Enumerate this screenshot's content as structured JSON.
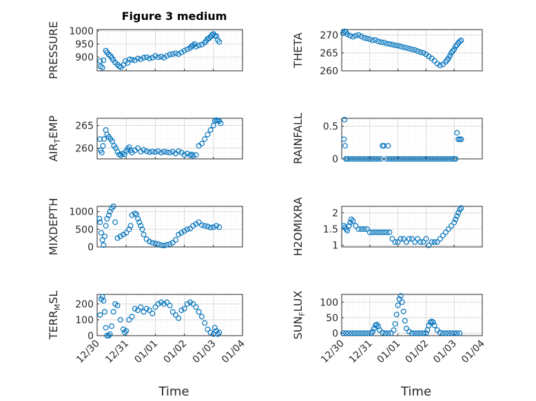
{
  "figure_title": "Figure 3 medium",
  "colors": {
    "marker": "#0072BD",
    "axis": "#262626",
    "grid": "#d9d9d9",
    "minorgrid": "#e8e8e8"
  },
  "x_axis": {
    "label": "Time",
    "ticks": [
      0,
      1,
      2,
      3,
      4,
      5
    ],
    "tick_labels": [
      "12/30",
      "12/31",
      "01/01",
      "01/02",
      "01/03",
      "01/04"
    ],
    "range": [
      0,
      5
    ]
  },
  "y_labels": {
    "pressure": "PRESSURE",
    "theta": "THETA",
    "air_temp": {
      "base": "AIR",
      "sub": "T",
      "rest": "EMP"
    },
    "rainfall": "RAINFALL",
    "mixdepth": "MIXDEPTH",
    "h2omixra": "H2OMIXRA",
    "terr_msl": {
      "base": "TERR",
      "sub": "M",
      "rest": "SL"
    },
    "sun_flux": {
      "base": "SUN",
      "sub": "F",
      "rest": "LUX"
    }
  },
  "chart_data": [
    {
      "id": "pressure",
      "type": "scatter",
      "title": "Figure 3 medium",
      "ylabel": "PRESSURE",
      "xlabel": "",
      "ylim": [
        848,
        1005
      ],
      "yticks": [
        900,
        950,
        1000
      ],
      "x": [
        0.1,
        0.12,
        0.18,
        0.22,
        0.3,
        0.34,
        0.4,
        0.46,
        0.5,
        0.55,
        0.62,
        0.7,
        0.76,
        0.82,
        0.9,
        0.97,
        1.05,
        1.12,
        1.2,
        1.3,
        1.4,
        1.5,
        1.6,
        1.7,
        1.8,
        1.9,
        2.0,
        2.1,
        2.2,
        2.3,
        2.4,
        2.5,
        2.6,
        2.7,
        2.8,
        2.9,
        3.0,
        3.1,
        3.2,
        3.25,
        3.3,
        3.35,
        3.4,
        3.5,
        3.6,
        3.7,
        3.75,
        3.8,
        3.85,
        3.9,
        3.95,
        4.0,
        4.05,
        4.1,
        4.15,
        4.2
      ],
      "values": [
        885,
        865,
        860,
        888,
        925,
        918,
        910,
        905,
        898,
        890,
        880,
        872,
        865,
        862,
        870,
        885,
        878,
        892,
        890,
        888,
        895,
        892,
        898,
        900,
        895,
        898,
        905,
        900,
        902,
        898,
        905,
        910,
        912,
        915,
        912,
        918,
        925,
        930,
        935,
        942,
        945,
        950,
        940,
        945,
        948,
        955,
        962,
        970,
        972,
        978,
        985,
        988,
        982,
        980,
        965,
        958
      ]
    },
    {
      "id": "theta",
      "type": "scatter",
      "ylabel": "THETA",
      "xlabel": "",
      "ylim": [
        260,
        271.5
      ],
      "yticks": [
        260,
        265,
        270
      ],
      "x": [
        0.05,
        0.1,
        0.15,
        0.2,
        0.3,
        0.4,
        0.5,
        0.6,
        0.7,
        0.8,
        0.9,
        1.0,
        1.1,
        1.2,
        1.3,
        1.4,
        1.5,
        1.6,
        1.7,
        1.8,
        1.9,
        2.0,
        2.1,
        2.2,
        2.3,
        2.4,
        2.5,
        2.6,
        2.7,
        2.8,
        2.9,
        3.0,
        3.1,
        3.2,
        3.3,
        3.4,
        3.5,
        3.6,
        3.7,
        3.75,
        3.8,
        3.85,
        3.9,
        3.95,
        4.0,
        4.05,
        4.1,
        4.15,
        4.2,
        4.25
      ],
      "values": [
        270.5,
        271,
        270.8,
        270.2,
        269.8,
        269.5,
        269.8,
        270,
        269.6,
        269.2,
        269,
        268.8,
        268.5,
        268.6,
        268.2,
        268,
        267.9,
        267.6,
        267.5,
        267.3,
        267.1,
        267,
        266.8,
        266.6,
        266.4,
        266.2,
        266,
        265.8,
        265.5,
        265.2,
        265,
        264.6,
        264,
        263.5,
        262.8,
        262,
        261.5,
        261.8,
        262.5,
        263,
        263.5,
        264.2,
        265,
        265.5,
        266,
        266.8,
        267.2,
        267.8,
        268.2,
        268.5
      ]
    },
    {
      "id": "air_temp",
      "type": "scatter",
      "ylabel": "AIR_TEMP",
      "xlabel": "",
      "ylim": [
        257.6,
        266.6
      ],
      "yticks": [
        260,
        265
      ],
      "x": [
        0.1,
        0.12,
        0.16,
        0.2,
        0.24,
        0.3,
        0.34,
        0.4,
        0.46,
        0.52,
        0.58,
        0.64,
        0.7,
        0.76,
        0.82,
        0.88,
        0.94,
        1.0,
        1.05,
        1.1,
        1.15,
        1.2,
        1.3,
        1.4,
        1.5,
        1.6,
        1.7,
        1.8,
        1.9,
        2.0,
        2.1,
        2.2,
        2.3,
        2.4,
        2.5,
        2.6,
        2.7,
        2.8,
        2.9,
        3.0,
        3.1,
        3.2,
        3.25,
        3.3,
        3.4,
        3.5,
        3.6,
        3.7,
        3.8,
        3.9,
        4.0,
        4.05,
        4.1,
        4.15,
        4.2,
        4.25
      ],
      "values": [
        262,
        259.5,
        259,
        260.5,
        262,
        264,
        263,
        262.5,
        262,
        261.5,
        260.5,
        260,
        259.2,
        258.6,
        258.4,
        258.8,
        258.6,
        259.3,
        259.8,
        260.2,
        259.5,
        259,
        259.5,
        260,
        259.2,
        259.6,
        259.3,
        259.1,
        259.2,
        259.1,
        259.3,
        259,
        259.2,
        259.1,
        259,
        259.2,
        258.8,
        259.3,
        259,
        258.5,
        258.8,
        258.4,
        258.6,
        258.3,
        258.5,
        260.5,
        261,
        262,
        263,
        264,
        265,
        266,
        266.2,
        266.1,
        266,
        265.5
      ]
    },
    {
      "id": "rainfall",
      "type": "scatter",
      "ylabel": "RAINFALL",
      "xlabel": "",
      "ylim": [
        0,
        0.62
      ],
      "yticks": [
        0,
        0.5
      ],
      "x": [
        0.08,
        0.1,
        0.12,
        0.15,
        0.2,
        0.3,
        0.4,
        0.5,
        0.6,
        0.7,
        0.8,
        0.9,
        1.0,
        1.1,
        1.2,
        1.3,
        1.4,
        1.45,
        1.5,
        1.6,
        1.65,
        1.7,
        1.8,
        1.9,
        2.0,
        2.1,
        2.2,
        2.3,
        2.4,
        2.5,
        2.6,
        2.7,
        2.8,
        2.9,
        3.0,
        3.1,
        3.2,
        3.3,
        3.4,
        3.5,
        3.6,
        3.7,
        3.8,
        3.9,
        4.0,
        4.05,
        4.1,
        4.15,
        4.2,
        4.25
      ],
      "values": [
        0.3,
        0.6,
        0.2,
        0,
        0,
        0,
        0,
        0,
        0,
        0,
        0,
        0,
        0,
        0,
        0,
        0,
        0,
        0.2,
        0.2,
        0,
        0.2,
        0,
        0,
        0,
        0,
        0,
        0,
        0,
        0,
        0,
        0,
        0,
        0,
        0,
        0,
        0,
        0,
        0,
        0,
        0,
        0,
        0,
        0,
        0,
        0,
        0,
        0.4,
        0.3,
        0.3,
        0.3
      ]
    },
    {
      "id": "mixdepth",
      "type": "scatter",
      "ylabel": "MIXDEPTH",
      "xlabel": "",
      "ylim": [
        0,
        1150
      ],
      "yticks": [
        0,
        500,
        1000
      ],
      "x": [
        0.08,
        0.1,
        0.14,
        0.18,
        0.22,
        0.26,
        0.3,
        0.34,
        0.4,
        0.44,
        0.5,
        0.56,
        0.62,
        0.7,
        0.8,
        0.9,
        1.0,
        1.1,
        1.15,
        1.2,
        1.3,
        1.35,
        1.4,
        1.45,
        1.5,
        1.55,
        1.6,
        1.7,
        1.8,
        1.9,
        2.0,
        2.1,
        2.2,
        2.3,
        2.4,
        2.5,
        2.6,
        2.7,
        2.8,
        2.9,
        3.0,
        3.1,
        3.2,
        3.3,
        3.4,
        3.5,
        3.6,
        3.7,
        3.8,
        3.9,
        4.0,
        4.1,
        4.2
      ],
      "values": [
        800,
        700,
        400,
        200,
        50,
        300,
        600,
        800,
        900,
        1000,
        1100,
        1150,
        700,
        250,
        300,
        350,
        400,
        500,
        600,
        900,
        950,
        920,
        800,
        700,
        600,
        500,
        350,
        220,
        150,
        120,
        100,
        80,
        50,
        40,
        60,
        80,
        120,
        200,
        350,
        400,
        450,
        500,
        520,
        600,
        650,
        700,
        620,
        600,
        580,
        550,
        560,
        600,
        560
      ]
    },
    {
      "id": "h2omixra",
      "type": "scatter",
      "ylabel": "H2OMIXRA",
      "xlabel": "",
      "ylim": [
        0.95,
        2.2
      ],
      "yticks": [
        1,
        1.5,
        2
      ],
      "x": [
        0.08,
        0.12,
        0.16,
        0.2,
        0.26,
        0.3,
        0.34,
        0.4,
        0.5,
        0.6,
        0.7,
        0.8,
        0.9,
        1.0,
        1.1,
        1.2,
        1.3,
        1.4,
        1.5,
        1.6,
        1.7,
        1.8,
        1.9,
        2.0,
        2.1,
        2.2,
        2.3,
        2.4,
        2.5,
        2.6,
        2.7,
        2.8,
        2.9,
        3.0,
        3.1,
        3.2,
        3.3,
        3.4,
        3.5,
        3.6,
        3.7,
        3.8,
        3.9,
        4.0,
        4.05,
        4.1,
        4.15,
        4.2,
        4.25
      ],
      "values": [
        1.6,
        1.55,
        1.5,
        1.45,
        1.6,
        1.7,
        1.8,
        1.75,
        1.6,
        1.5,
        1.5,
        1.5,
        1.5,
        1.4,
        1.4,
        1.4,
        1.4,
        1.4,
        1.4,
        1.4,
        1.4,
        1.2,
        1.1,
        1.1,
        1.2,
        1.2,
        1.1,
        1.2,
        1.2,
        1.1,
        1.2,
        1.1,
        1.1,
        1.2,
        1.0,
        1.1,
        1.1,
        1.1,
        1.2,
        1.3,
        1.4,
        1.5,
        1.6,
        1.7,
        1.8,
        1.9,
        2.0,
        2.1,
        2.15
      ]
    },
    {
      "id": "terr_msl",
      "type": "scatter",
      "ylabel": "TERR_MSL",
      "xlabel": "Time",
      "ylim": [
        0,
        260
      ],
      "yticks": [
        0,
        100,
        200
      ],
      "x": [
        0.1,
        0.14,
        0.18,
        0.22,
        0.26,
        0.3,
        0.34,
        0.4,
        0.44,
        0.5,
        0.56,
        0.62,
        0.7,
        0.8,
        0.9,
        0.95,
        1.0,
        1.1,
        1.2,
        1.3,
        1.4,
        1.5,
        1.6,
        1.7,
        1.8,
        1.9,
        2.0,
        2.1,
        2.2,
        2.3,
        2.4,
        2.5,
        2.6,
        2.7,
        2.8,
        2.9,
        3.0,
        3.1,
        3.2,
        3.3,
        3.4,
        3.5,
        3.6,
        3.7,
        3.8,
        3.9,
        4.0,
        4.05,
        4.1,
        4.15,
        4.2
      ],
      "values": [
        130,
        230,
        245,
        220,
        150,
        50,
        0,
        0,
        10,
        60,
        150,
        200,
        190,
        100,
        40,
        20,
        30,
        100,
        120,
        170,
        160,
        180,
        150,
        170,
        160,
        140,
        180,
        200,
        210,
        200,
        210,
        190,
        150,
        130,
        110,
        160,
        170,
        200,
        210,
        200,
        180,
        150,
        120,
        80,
        40,
        20,
        10,
        50,
        30,
        10,
        20
      ]
    },
    {
      "id": "sun_flux",
      "type": "scatter",
      "ylabel": "SUN_FLUX",
      "xlabel": "Time",
      "ylim": [
        -8,
        125
      ],
      "yticks": [
        0,
        50,
        100
      ],
      "x": [
        0.05,
        0.15,
        0.25,
        0.35,
        0.45,
        0.55,
        0.65,
        0.75,
        0.85,
        0.95,
        1.05,
        1.1,
        1.15,
        1.2,
        1.25,
        1.3,
        1.35,
        1.45,
        1.55,
        1.65,
        1.75,
        1.85,
        1.9,
        1.95,
        2.0,
        2.05,
        2.1,
        2.15,
        2.2,
        2.25,
        2.3,
        2.4,
        2.5,
        2.6,
        2.7,
        2.8,
        2.9,
        3.0,
        3.05,
        3.1,
        3.15,
        3.2,
        3.25,
        3.3,
        3.4,
        3.5,
        3.6,
        3.7,
        3.8,
        3.9,
        4.0,
        4.1,
        4.2
      ],
      "values": [
        0,
        0,
        0,
        0,
        0,
        0,
        0,
        0,
        0,
        0,
        0,
        5,
        15,
        25,
        28,
        22,
        10,
        2,
        0,
        0,
        0,
        10,
        30,
        60,
        90,
        110,
        120,
        100,
        70,
        40,
        15,
        5,
        0,
        0,
        0,
        0,
        0,
        0,
        10,
        25,
        35,
        38,
        35,
        25,
        10,
        2,
        0,
        0,
        0,
        0,
        0,
        0,
        0
      ]
    }
  ]
}
